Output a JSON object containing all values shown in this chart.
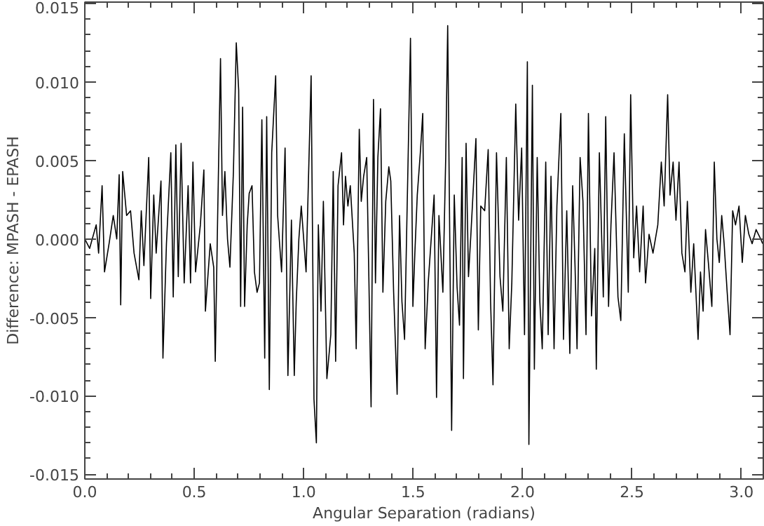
{
  "chart_data": {
    "type": "line",
    "xlabel": "Angular Separation (radians)",
    "ylabel": "Difference: MPASH - EPASH",
    "xlim": [
      0,
      3.1
    ],
    "ylim": [
      -0.0153,
      0.0151
    ],
    "xticks": [
      {
        "value": 0,
        "label": "0.0"
      },
      {
        "value": 0.5,
        "label": "0.5"
      },
      {
        "value": 1.0,
        "label": "1.0"
      },
      {
        "value": 1.5,
        "label": "1.5"
      },
      {
        "value": 2.0,
        "label": "2.0"
      },
      {
        "value": 2.5,
        "label": "2.5"
      },
      {
        "value": 3.0,
        "label": "3.0"
      },
      {
        "value": 0.1,
        "label": null
      },
      {
        "value": 0.2,
        "label": null
      },
      {
        "value": 0.3,
        "label": null
      },
      {
        "value": 0.4,
        "label": null
      },
      {
        "value": 0.6,
        "label": null
      },
      {
        "value": 0.7,
        "label": null
      },
      {
        "value": 0.8,
        "label": null
      },
      {
        "value": 0.9,
        "label": null
      },
      {
        "value": 1.1,
        "label": null
      },
      {
        "value": 1.2,
        "label": null
      },
      {
        "value": 1.3,
        "label": null
      },
      {
        "value": 1.4,
        "label": null
      },
      {
        "value": 1.6,
        "label": null
      },
      {
        "value": 1.7,
        "label": null
      },
      {
        "value": 1.8,
        "label": null
      },
      {
        "value": 1.9,
        "label": null
      },
      {
        "value": 2.1,
        "label": null
      },
      {
        "value": 2.2,
        "label": null
      },
      {
        "value": 2.3,
        "label": null
      },
      {
        "value": 2.4,
        "label": null
      },
      {
        "value": 2.6,
        "label": null
      },
      {
        "value": 2.7,
        "label": null
      },
      {
        "value": 2.8,
        "label": null
      },
      {
        "value": 2.9,
        "label": null
      }
    ],
    "yticks": [
      {
        "value": -0.015,
        "label": "-0.015"
      },
      {
        "value": -0.01,
        "label": "-0.010"
      },
      {
        "value": -0.005,
        "label": "-0.005"
      },
      {
        "value": 0,
        "label": "0.000"
      },
      {
        "value": 0.005,
        "label": "0.005"
      },
      {
        "value": 0.01,
        "label": "0.010"
      },
      {
        "value": 0.015,
        "label": "0.015"
      },
      {
        "value": -0.014,
        "label": null
      },
      {
        "value": -0.013,
        "label": null
      },
      {
        "value": -0.012,
        "label": null
      },
      {
        "value": -0.011,
        "label": null
      },
      {
        "value": -0.009,
        "label": null
      },
      {
        "value": -0.008,
        "label": null
      },
      {
        "value": -0.007,
        "label": null
      },
      {
        "value": -0.006,
        "label": null
      },
      {
        "value": -0.004,
        "label": null
      },
      {
        "value": -0.003,
        "label": null
      },
      {
        "value": -0.002,
        "label": null
      },
      {
        "value": -0.001,
        "label": null
      },
      {
        "value": 0.001,
        "label": null
      },
      {
        "value": 0.002,
        "label": null
      },
      {
        "value": 0.003,
        "label": null
      },
      {
        "value": 0.004,
        "label": null
      },
      {
        "value": 0.006,
        "label": null
      },
      {
        "value": 0.007,
        "label": null
      },
      {
        "value": 0.008,
        "label": null
      },
      {
        "value": 0.009,
        "label": null
      },
      {
        "value": 0.011,
        "label": null
      },
      {
        "value": 0.012,
        "label": null
      },
      {
        "value": 0.013,
        "label": null
      },
      {
        "value": 0.014,
        "label": null
      }
    ],
    "grid": false,
    "series": [
      {
        "color": "#000000",
        "x": [
          0.0,
          0.022,
          0.052,
          0.063,
          0.079,
          0.09,
          0.112,
          0.13,
          0.146,
          0.157,
          0.164,
          0.173,
          0.191,
          0.209,
          0.225,
          0.247,
          0.258,
          0.27,
          0.292,
          0.301,
          0.315,
          0.326,
          0.348,
          0.357,
          0.373,
          0.393,
          0.404,
          0.416,
          0.427,
          0.44,
          0.454,
          0.472,
          0.483,
          0.494,
          0.506,
          0.528,
          0.544,
          0.551,
          0.573,
          0.589,
          0.596,
          0.607,
          0.62,
          0.629,
          0.64,
          0.652,
          0.663,
          0.679,
          0.692,
          0.703,
          0.712,
          0.721,
          0.73,
          0.742,
          0.751,
          0.764,
          0.775,
          0.787,
          0.798,
          0.809,
          0.822,
          0.831,
          0.843,
          0.854,
          0.872,
          0.881,
          0.899,
          0.915,
          0.928,
          0.944,
          0.957,
          0.966,
          0.978,
          0.989,
          1.011,
          1.034,
          1.047,
          1.058,
          1.067,
          1.079,
          1.09,
          1.106,
          1.124,
          1.135,
          1.146,
          1.157,
          1.173,
          1.182,
          1.191,
          1.202,
          1.213,
          1.231,
          1.24,
          1.254,
          1.263,
          1.274,
          1.288,
          1.297,
          1.308,
          1.319,
          1.328,
          1.339,
          1.351,
          1.362,
          1.375,
          1.389,
          1.398,
          1.411,
          1.427,
          1.438,
          1.449,
          1.461,
          1.472,
          1.488,
          1.499,
          1.508,
          1.519,
          1.533,
          1.544,
          1.555,
          1.569,
          1.587,
          1.596,
          1.607,
          1.618,
          1.636,
          1.649,
          1.658,
          1.676,
          1.688,
          1.701,
          1.712,
          1.724,
          1.73,
          1.742,
          1.753,
          1.764,
          1.787,
          1.798,
          1.809,
          1.827,
          1.843,
          1.854,
          1.865,
          1.881,
          1.897,
          1.91,
          1.926,
          1.939,
          1.951,
          1.969,
          1.982,
          1.996,
          2.009,
          2.022,
          2.029,
          2.045,
          2.054,
          2.067,
          2.079,
          2.09,
          2.106,
          2.117,
          2.13,
          2.144,
          2.157,
          2.175,
          2.187,
          2.202,
          2.216,
          2.229,
          2.24,
          2.249,
          2.263,
          2.276,
          2.29,
          2.301,
          2.315,
          2.33,
          2.337,
          2.351,
          2.369,
          2.38,
          2.393,
          2.404,
          2.418,
          2.436,
          2.449,
          2.465,
          2.483,
          2.494,
          2.508,
          2.521,
          2.535,
          2.551,
          2.562,
          2.578,
          2.596,
          2.618,
          2.634,
          2.647,
          2.663,
          2.674,
          2.688,
          2.701,
          2.715,
          2.728,
          2.742,
          2.753,
          2.769,
          2.782,
          2.802,
          2.813,
          2.825,
          2.836,
          2.849,
          2.865,
          2.876,
          2.888,
          2.899,
          2.91,
          2.921,
          2.935,
          2.948,
          2.96,
          2.973,
          2.989,
          3.004,
          3.018,
          3.034,
          3.049,
          3.067,
          3.088,
          3.097
        ],
        "values": [
          0,
          -0.0006,
          0.0009,
          -0.0009,
          0.0034,
          -0.0021,
          -0.0002,
          0.0015,
          0,
          0.0041,
          -0.0042,
          0.0043,
          0.0015,
          0.0018,
          -0.0009,
          -0.0026,
          0.0018,
          -0.0017,
          0.0052,
          -0.0038,
          0.0028,
          -0.0009,
          0.0037,
          -0.0076,
          -0.0003,
          0.0055,
          -0.0037,
          0.006,
          -0.0024,
          0.0061,
          -0.0028,
          0.0034,
          -0.0028,
          0.0049,
          -0.0021,
          0.0009,
          0.0044,
          -0.0046,
          -0.0003,
          -0.0018,
          -0.0078,
          0.0015,
          0.0115,
          0.0015,
          0.0043,
          0,
          -0.0018,
          0.0043,
          0.0125,
          0.0095,
          -0.0043,
          0.0084,
          -0.0043,
          0.0009,
          0.0029,
          0.0034,
          -0.0021,
          -0.0034,
          -0.0028,
          0.0076,
          -0.0076,
          0.0078,
          -0.0096,
          0.0055,
          0.0104,
          0.0015,
          -0.0021,
          0.0058,
          -0.0087,
          0.0012,
          -0.0087,
          -0.004,
          0,
          0.0021,
          -0.0021,
          0.0104,
          -0.0102,
          -0.013,
          0.0009,
          -0.0046,
          0.0024,
          -0.0089,
          -0.0061,
          0.0043,
          -0.0078,
          0.0034,
          0.0055,
          0.0009,
          0.004,
          0.0021,
          0.0034,
          -0.0009,
          -0.007,
          0.007,
          0.0024,
          0.004,
          0.0052,
          -0.0018,
          -0.0107,
          0.0089,
          -0.0028,
          0.0052,
          0.0083,
          -0.0034,
          0.0024,
          0.0046,
          0.0037,
          -0.0034,
          -0.0099,
          0.0015,
          -0.004,
          -0.0064,
          0.0015,
          0.0128,
          -0.0043,
          -0.0009,
          0.0028,
          0.0055,
          0.008,
          -0.007,
          -0.0028,
          0.0009,
          0.0028,
          -0.0101,
          0.0015,
          -0.0034,
          0.0052,
          0.0136,
          -0.0122,
          0.0028,
          -0.0031,
          -0.0055,
          0.0052,
          -0.0089,
          0.0061,
          -0.0024,
          0.0003,
          0.0064,
          -0.0058,
          0.0021,
          0.0018,
          0.0057,
          -0.004,
          -0.0093,
          0.0055,
          -0.0024,
          -0.0046,
          0.0052,
          -0.007,
          -0.0028,
          0.0086,
          0.0012,
          0.0058,
          -0.0061,
          0.0113,
          -0.0131,
          0.0098,
          -0.0083,
          0.0052,
          -0.004,
          -0.007,
          0.0049,
          -0.0061,
          0.004,
          -0.007,
          0.0021,
          0.008,
          -0.0064,
          0.0018,
          -0.0073,
          0.0034,
          -0.0018,
          -0.007,
          0.0052,
          0.0024,
          -0.0061,
          0.008,
          -0.0049,
          -0.0006,
          -0.0083,
          0.0055,
          -0.0037,
          0.0078,
          -0.0043,
          0.0009,
          0.0055,
          -0.0037,
          -0.0052,
          0.0067,
          -0.0034,
          0.0092,
          -0.0012,
          0.0021,
          -0.0021,
          0.0021,
          -0.0028,
          0.0003,
          -0.0009,
          0.0009,
          0.0049,
          0.0021,
          0.0092,
          0.0028,
          0.0049,
          0.0012,
          0.0049,
          -0.0009,
          -0.0021,
          0.0024,
          -0.0034,
          -0.0003,
          -0.0064,
          -0.0021,
          -0.0046,
          0.0006,
          -0.0015,
          -0.0043,
          0.0049,
          0,
          -0.0015,
          0.0015,
          -0.0003,
          -0.0034,
          -0.0061,
          0.0018,
          0.0009,
          0.0021,
          -0.0015,
          0.0015,
          0.0003,
          -0.0003,
          0.0006,
          0,
          -0.0003
        ]
      }
    ]
  }
}
